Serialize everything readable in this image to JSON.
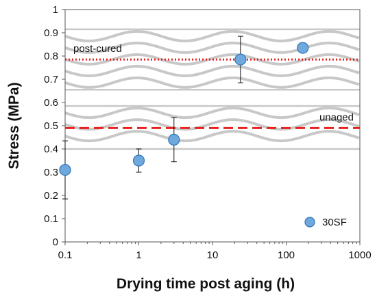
{
  "chart_data": {
    "type": "scatter",
    "xlabel": "Drying time post aging (h)",
    "ylabel": "Stress (MPa)",
    "x_scale": "log",
    "xlim": [
      0.1,
      1000
    ],
    "ylim": [
      0,
      1
    ],
    "x_ticks": [
      0.1,
      1,
      10,
      100,
      1000
    ],
    "x_tick_labels": [
      "0.1",
      "1",
      "10",
      "100",
      "1000"
    ],
    "y_ticks": [
      0,
      0.1,
      0.2,
      0.3,
      0.4,
      0.5,
      0.6,
      0.7,
      0.8,
      0.9,
      1
    ],
    "y_tick_labels": [
      "0",
      "0.1",
      "0.2",
      "0.3",
      "0.4",
      "0.5",
      "0.6",
      "0.7",
      "0.8",
      "0.9",
      "1"
    ],
    "grid": false,
    "series": [
      {
        "name": "30SF",
        "color": "#6fa8dc",
        "edge_color": "#2e75b6",
        "x": [
          0.1,
          1,
          3,
          24,
          168
        ],
        "y": [
          0.31,
          0.35,
          0.44,
          0.785,
          0.835
        ],
        "error": [
          0.125,
          0.05,
          0.095,
          0.1,
          null
        ]
      }
    ],
    "reference_lines": [
      {
        "label": "post-cured",
        "y": 0.785,
        "style": "dotted",
        "color": "#e8231e"
      },
      {
        "label": "unaged",
        "y": 0.49,
        "style": "dashed",
        "color": "#e8231e"
      }
    ],
    "bands": [
      {
        "y_min": 0.655,
        "y_max": 0.915
      },
      {
        "y_min": 0.4,
        "y_max": 0.585
      }
    ],
    "legend": {
      "position": "bottom-right",
      "entries": [
        "30SF"
      ]
    }
  }
}
